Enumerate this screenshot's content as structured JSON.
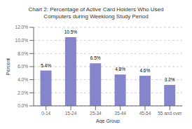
{
  "chart_data": {
    "type": "bar",
    "title": "Chart 2: Percentage of Active Card Holders Who Used\nComputers during Weeklong Study Period",
    "categories": [
      "0-14",
      "15-24",
      "25-34",
      "35-44",
      "45-54",
      "55 and over"
    ],
    "values": [
      5.4,
      10.5,
      6.5,
      4.8,
      4.6,
      3.2
    ],
    "value_labels": [
      "5.4%",
      "10.5%",
      "6.5%",
      "4.8%",
      "4.6%",
      "3.2%"
    ],
    "data_labels": true,
    "color": "#8585cc",
    "xlabel": "Age Group",
    "ylabel": "Percent",
    "ylim": [
      0,
      12.0
    ],
    "yticks": [
      {
        "value": 0.0,
        "label": "0.0%"
      },
      {
        "value": 2.0,
        "label": "2.0%"
      },
      {
        "value": 4.0,
        "label": "4.0%"
      },
      {
        "value": 6.0,
        "label": "6.0%"
      },
      {
        "value": 8.0,
        "label": "8.0%"
      },
      {
        "value": 10.0,
        "label": "10.0%"
      },
      {
        "value": 12.0,
        "label": "12.0%"
      }
    ],
    "grid": true
  }
}
